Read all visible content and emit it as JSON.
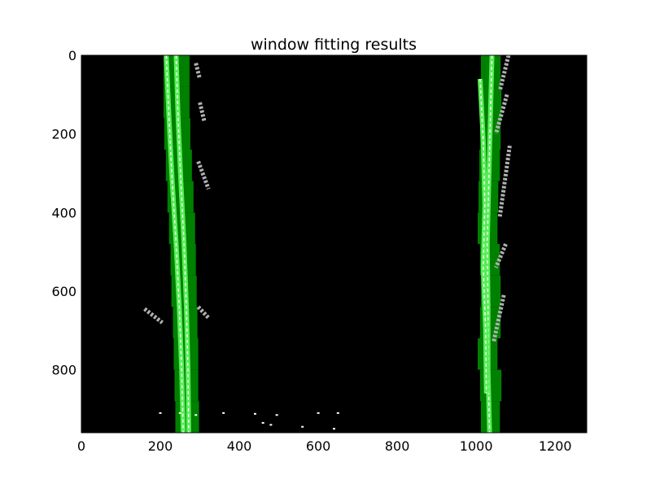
{
  "chart_data": {
    "type": "heatmap",
    "title": "window fitting results",
    "xlabel": "",
    "ylabel": "",
    "xlim": [
      0,
      1280
    ],
    "ylim": [
      960,
      0
    ],
    "y_inverted": true,
    "grid": false,
    "x_ticks": [
      0,
      200,
      400,
      600,
      800,
      1000,
      1200
    ],
    "y_ticks": [
      0,
      200,
      400,
      600,
      800
    ],
    "colors": {
      "background": "#000000",
      "window_fill": "#008000",
      "lane_pixels": "#55ee55",
      "pixel_highlight": "#ffffff"
    },
    "windows": [
      {
        "lane": "left",
        "x0": 208,
        "x1": 274,
        "y0": 0,
        "y1": 80
      },
      {
        "lane": "left",
        "x0": 208,
        "x1": 274,
        "y0": 80,
        "y1": 160
      },
      {
        "lane": "left",
        "x0": 210,
        "x1": 276,
        "y0": 160,
        "y1": 240
      },
      {
        "lane": "left",
        "x0": 214,
        "x1": 280,
        "y0": 240,
        "y1": 320
      },
      {
        "lane": "left",
        "x0": 218,
        "x1": 284,
        "y0": 320,
        "y1": 400
      },
      {
        "lane": "left",
        "x0": 222,
        "x1": 288,
        "y0": 400,
        "y1": 480
      },
      {
        "lane": "left",
        "x0": 226,
        "x1": 290,
        "y0": 480,
        "y1": 560
      },
      {
        "lane": "left",
        "x0": 228,
        "x1": 292,
        "y0": 560,
        "y1": 640
      },
      {
        "lane": "left",
        "x0": 232,
        "x1": 294,
        "y0": 640,
        "y1": 720
      },
      {
        "lane": "left",
        "x0": 234,
        "x1": 296,
        "y0": 720,
        "y1": 800
      },
      {
        "lane": "left",
        "x0": 236,
        "x1": 296,
        "y0": 800,
        "y1": 880
      },
      {
        "lane": "left",
        "x0": 238,
        "x1": 298,
        "y0": 880,
        "y1": 960
      },
      {
        "lane": "right",
        "x0": 1012,
        "x1": 1062,
        "y0": 0,
        "y1": 80
      },
      {
        "lane": "right",
        "x0": 1014,
        "x1": 1064,
        "y0": 80,
        "y1": 160
      },
      {
        "lane": "right",
        "x0": 1010,
        "x1": 1062,
        "y0": 160,
        "y1": 240
      },
      {
        "lane": "right",
        "x0": 1008,
        "x1": 1060,
        "y0": 240,
        "y1": 320
      },
      {
        "lane": "right",
        "x0": 1006,
        "x1": 1056,
        "y0": 320,
        "y1": 400
      },
      {
        "lane": "right",
        "x0": 1004,
        "x1": 1054,
        "y0": 400,
        "y1": 480
      },
      {
        "lane": "right",
        "x0": 1010,
        "x1": 1060,
        "y0": 480,
        "y1": 560
      },
      {
        "lane": "right",
        "x0": 1012,
        "x1": 1062,
        "y0": 560,
        "y1": 640
      },
      {
        "lane": "right",
        "x0": 1010,
        "x1": 1062,
        "y0": 640,
        "y1": 720
      },
      {
        "lane": "right",
        "x0": 1004,
        "x1": 1054,
        "y0": 720,
        "y1": 800
      },
      {
        "lane": "right",
        "x0": 1010,
        "x1": 1064,
        "y0": 800,
        "y1": 880
      },
      {
        "lane": "right",
        "x0": 1012,
        "x1": 1060,
        "y0": 880,
        "y1": 960
      }
    ],
    "lane_strokes": [
      {
        "lane": "left",
        "points": [
          [
            240,
            0
          ],
          [
            245,
            160
          ],
          [
            252,
            320
          ],
          [
            260,
            480
          ],
          [
            266,
            640
          ],
          [
            270,
            800
          ],
          [
            272,
            960
          ]
        ]
      },
      {
        "lane": "left",
        "points": [
          [
            215,
            0
          ],
          [
            222,
            160
          ],
          [
            230,
            320
          ],
          [
            240,
            480
          ],
          [
            248,
            640
          ],
          [
            254,
            800
          ],
          [
            258,
            960
          ]
        ]
      },
      {
        "lane": "right",
        "points": [
          [
            1040,
            0
          ],
          [
            1036,
            160
          ],
          [
            1032,
            320
          ],
          [
            1028,
            480
          ],
          [
            1030,
            640
          ],
          [
            1030,
            800
          ],
          [
            1034,
            960
          ]
        ]
      },
      {
        "lane": "right",
        "points": [
          [
            1010,
            60
          ],
          [
            1018,
            220
          ],
          [
            1022,
            380
          ],
          [
            1018,
            540
          ],
          [
            1024,
            700
          ],
          [
            1026,
            860
          ]
        ]
      }
    ],
    "dashed_segments": [
      {
        "lane": "left",
        "x0": 290,
        "y0": 20,
        "x1": 300,
        "y1": 60
      },
      {
        "lane": "left",
        "x0": 300,
        "y0": 120,
        "x1": 312,
        "y1": 170
      },
      {
        "lane": "left",
        "x0": 296,
        "y0": 270,
        "x1": 322,
        "y1": 340
      },
      {
        "lane": "left",
        "x0": 296,
        "y0": 640,
        "x1": 324,
        "y1": 670
      },
      {
        "lane": "left",
        "x0": 160,
        "y0": 645,
        "x1": 205,
        "y1": 680
      },
      {
        "lane": "right",
        "x0": 1082,
        "y0": 0,
        "x1": 1060,
        "y1": 90
      },
      {
        "lane": "right",
        "x0": 1078,
        "y0": 100,
        "x1": 1050,
        "y1": 200
      },
      {
        "lane": "right",
        "x0": 1085,
        "y0": 230,
        "x1": 1060,
        "y1": 410
      },
      {
        "lane": "right",
        "x0": 1075,
        "y0": 480,
        "x1": 1050,
        "y1": 540
      },
      {
        "lane": "right",
        "x0": 1070,
        "y0": 610,
        "x1": 1044,
        "y1": 730
      }
    ],
    "noise_points": [
      [
        200,
        910
      ],
      [
        250,
        910
      ],
      [
        290,
        915
      ],
      [
        360,
        910
      ],
      [
        440,
        912
      ],
      [
        495,
        915
      ],
      [
        600,
        910
      ],
      [
        650,
        910
      ],
      [
        460,
        935
      ],
      [
        480,
        940
      ],
      [
        560,
        945
      ],
      [
        640,
        950
      ]
    ]
  }
}
